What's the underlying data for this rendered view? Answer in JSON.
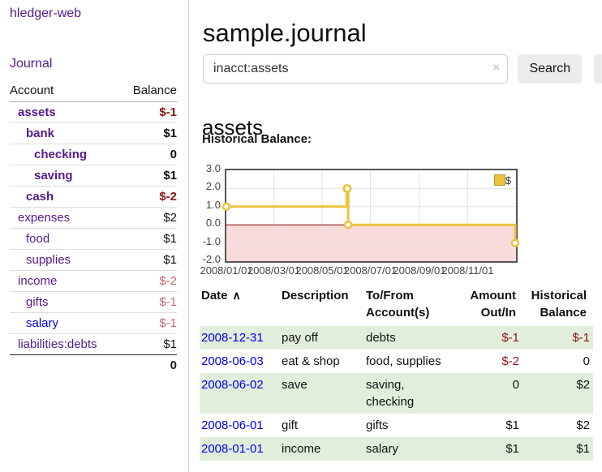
{
  "app": {
    "title": "hledger-web",
    "nav_journal": "Journal"
  },
  "colors": {
    "accent_purple": "#551a8b",
    "link_blue": "#0000ee",
    "negative_strong": "#8e1515",
    "negative_soft": "#c06a6e",
    "row_stripe_green": "#e1eedb",
    "chart_line_gold": "#edc240",
    "chart_negative_fill": "#fadbdb",
    "chart_zero_line": "#8b0000"
  },
  "sidebar": {
    "accounts_table": {
      "headers": {
        "account": "Account",
        "balance": "Balance"
      },
      "rows": [
        {
          "name": "assets",
          "balance": "$-1",
          "indent": 1,
          "bold": true,
          "balance_class": "neg"
        },
        {
          "name": "bank",
          "balance": "$1",
          "indent": 2,
          "bold": true,
          "balance_class": "pos"
        },
        {
          "name": "checking",
          "balance": "0",
          "indent": 3,
          "bold": true,
          "balance_class": "pos"
        },
        {
          "name": "saving",
          "balance": "$1",
          "indent": 3,
          "bold": true,
          "balance_class": "pos"
        },
        {
          "name": "cash",
          "balance": "$-2",
          "indent": 2,
          "bold": true,
          "balance_class": "neg"
        },
        {
          "name": "expenses",
          "balance": "$2",
          "indent": 1,
          "bold": false,
          "balance_class": "pos"
        },
        {
          "name": "food",
          "balance": "$1",
          "indent": 2,
          "bold": false,
          "balance_class": "pos"
        },
        {
          "name": "supplies",
          "balance": "$1",
          "indent": 2,
          "bold": false,
          "balance_class": "pos"
        },
        {
          "name": "income",
          "balance": "$-2",
          "indent": 1,
          "bold": false,
          "balance_class": "neg-soft"
        },
        {
          "name": "gifts",
          "balance": "$-1",
          "indent": 2,
          "bold": false,
          "balance_class": "neg-soft"
        },
        {
          "name": "salary",
          "balance": "$-1",
          "indent": 2,
          "bold": false,
          "balance_class": "neg-soft",
          "link_class": "blue"
        },
        {
          "name": "liabilities:debts",
          "balance": "$1",
          "indent": 1,
          "bold": false,
          "balance_class": "pos"
        }
      ],
      "total": "0"
    }
  },
  "main": {
    "title": "sample.journal",
    "search": {
      "value": "inacct:assets",
      "clear_icon": "×",
      "button": "Search",
      "help_button": "?"
    },
    "account_heading": "assets",
    "chart_label": "Historical Balance:",
    "register": {
      "headers": {
        "date": "Date",
        "description": "Description",
        "accounts": "To/From Account(s)",
        "amount": "Amount Out/In",
        "balance": "Historical Balance"
      },
      "sort_icon": "∧",
      "rows": [
        {
          "date": "2008-12-31",
          "description": "pay off",
          "accounts": "debts",
          "amount": "$-1",
          "amount_class": "neg",
          "balance": "$-1",
          "balance_class": "neg",
          "stripe": true
        },
        {
          "date": "2008-06-03",
          "description": "eat & shop",
          "accounts": "food, supplies",
          "amount": "$-2",
          "amount_class": "neg",
          "balance": "0",
          "balance_class": "pos",
          "stripe": false
        },
        {
          "date": "2008-06-02",
          "description": "save",
          "accounts": "saving, checking",
          "amount": "0",
          "amount_class": "pos",
          "balance": "$2",
          "balance_class": "pos",
          "stripe": true
        },
        {
          "date": "2008-06-01",
          "description": "gift",
          "accounts": "gifts",
          "amount": "$1",
          "amount_class": "pos",
          "balance": "$2",
          "balance_class": "pos",
          "stripe": false
        },
        {
          "date": "2008-01-01",
          "description": "income",
          "accounts": "salary",
          "amount": "$1",
          "amount_class": "pos",
          "balance": "$1",
          "balance_class": "pos",
          "stripe": true
        }
      ]
    }
  },
  "chart_data": {
    "type": "line",
    "step": true,
    "title": "Historical Balance",
    "series": [
      {
        "name": "$",
        "color": "#edc240",
        "points": [
          {
            "date": "2008-01-01",
            "value": 1
          },
          {
            "date": "2008-06-01",
            "value": 2
          },
          {
            "date": "2008-06-02",
            "value": 2
          },
          {
            "date": "2008-06-03",
            "value": 0
          },
          {
            "date": "2008-12-31",
            "value": -1
          }
        ]
      }
    ],
    "xlim": [
      "2008-01-01",
      "2008-12-31"
    ],
    "ylim": [
      -2,
      3
    ],
    "x_ticks": [
      "2008/01/01",
      "2008/03/01",
      "2008/05/01",
      "2008/07/01",
      "2008/09/01",
      "2008/11/01"
    ],
    "y_ticks": [
      "3.0",
      "2.0",
      "1.0",
      "0.0",
      "-1.0",
      "-2.0"
    ],
    "grid": true,
    "legend_position": "top-right",
    "negative_region_fill": "#fadbdb",
    "zero_line_color": "#8b0000"
  }
}
